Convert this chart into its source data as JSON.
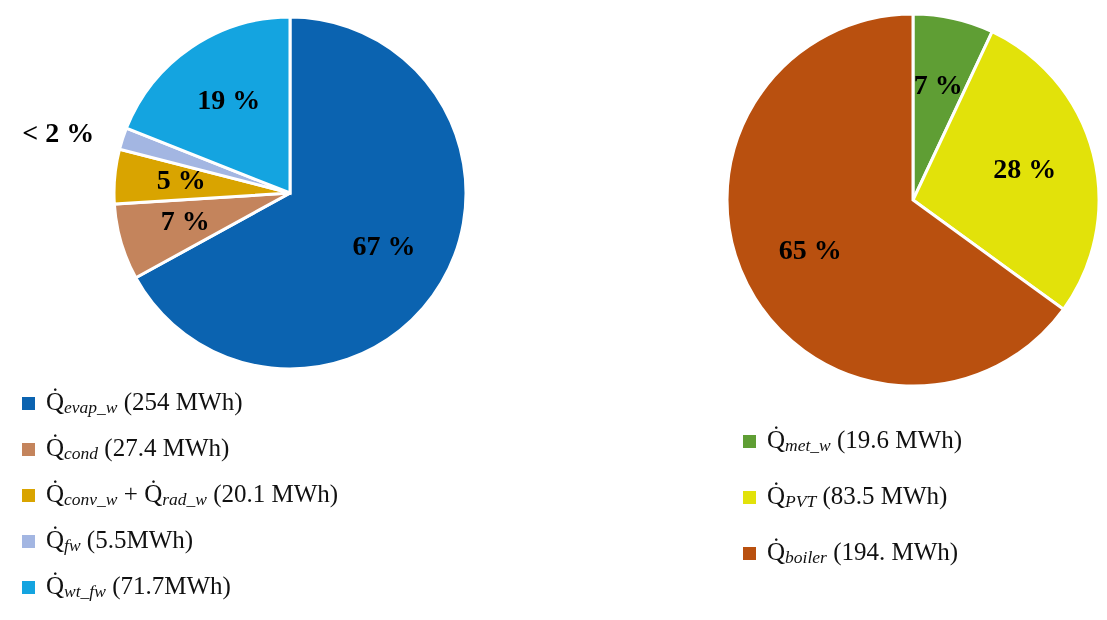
{
  "chart_data": [
    {
      "type": "pie",
      "categories": [
        "Q̇$_{evap_w}$ (254 MWh)",
        "Q̇$_{cond}$ (27.4 MWh)",
        "Q̇$_{conv_w}$ + Q̇$_{rad_w}$ (20.1 MWh)",
        "Q̇$_{fw}$ (5.5MWh)",
        "Q̇$_{wt_fw}$ (71.7MWh)"
      ],
      "values": [
        67,
        7,
        5,
        2,
        19
      ],
      "value_labels": [
        "67 %",
        "7 %",
        "5 %",
        "< 2 %",
        "19 %"
      ],
      "colors": [
        "#0b63b0",
        "#c4845c",
        "#d9a400",
        "#a3b6e2",
        "#14a4e0"
      ],
      "legend": "bottom"
    },
    {
      "type": "pie",
      "categories": [
        "Q̇$_{met_w}$ (19.6 MWh)",
        "Q̇$_{PVT}$ (83.5 MWh)",
        "Q̇$_{boiler}$ (194. MWh)"
      ],
      "values": [
        7,
        28,
        65
      ],
      "value_labels": [
        "7 %",
        "28 %",
        "65 %"
      ],
      "colors": [
        "#5f9e34",
        "#e2e20a",
        "#b9500f"
      ],
      "legend": "bottom"
    }
  ]
}
